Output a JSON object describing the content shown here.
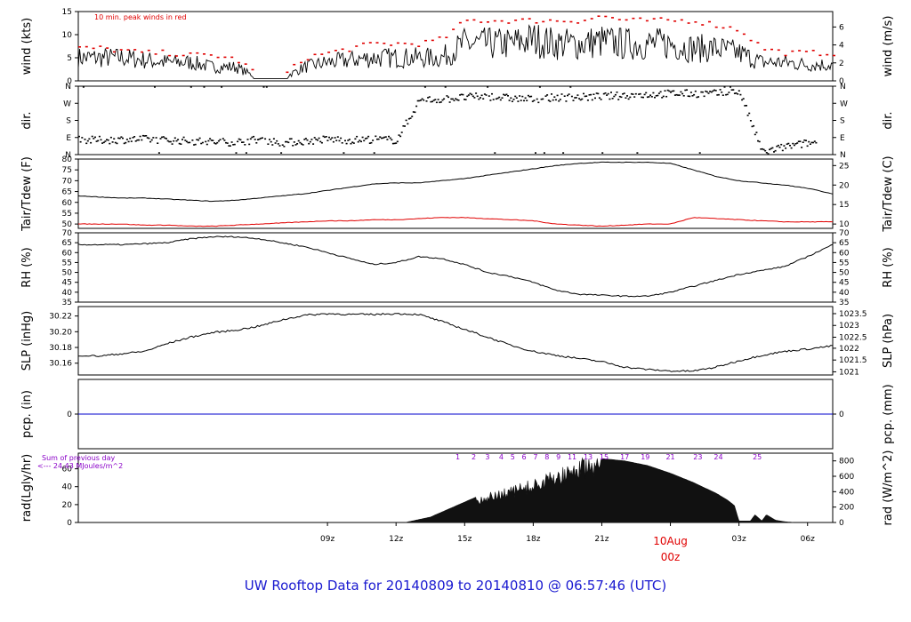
{
  "footer_title": "UW Rooftop Data for 20140809  to  20140810 @ 06:57:46  (UTC)",
  "colors": {
    "line": "#000000",
    "dew_line": "#e00000",
    "peak_dots": "#e00000",
    "precip_line": "#0000cc",
    "radiation_fill": "#111111",
    "rad_annotation": "#8a00c8",
    "date_marker": "#e00000",
    "footer": "#1a1ad0"
  },
  "chart_data": [
    {
      "id": "wind",
      "type": "line",
      "ylabel_left": "wind (kts)",
      "ylabel_right": "wind (m/s)",
      "annotation": "10 min. peak winds in red",
      "ylim": [
        0,
        15
      ],
      "yticks_left": [
        "0",
        "5",
        "10",
        "15"
      ],
      "yticks_right": [
        "0",
        "2",
        "4",
        "6"
      ],
      "yticks_right_values_kts": [
        0,
        3.89,
        7.78,
        11.66
      ],
      "x": [
        -1.9,
        -1,
        0,
        1,
        2,
        3,
        4,
        5,
        6,
        7,
        8,
        9,
        10,
        11,
        12,
        13,
        14,
        15,
        16,
        17,
        18,
        19,
        20,
        21,
        22,
        23,
        24,
        25,
        26,
        27,
        28,
        29,
        30,
        31.1
      ],
      "series": [
        {
          "values": [
            5,
            5,
            5,
            4.5,
            4,
            4,
            3,
            3,
            0.5,
            0.5,
            3,
            4,
            4.5,
            5,
            5,
            5,
            5,
            8,
            8,
            8,
            9,
            8,
            8,
            8.5,
            8,
            8,
            8,
            7,
            7,
            6,
            4,
            4,
            3.5,
            3.5
          ]
        },
        {
          "values": [
            7,
            7,
            6.5,
            6,
            6,
            5.5,
            5.5,
            4.5,
            1,
            1,
            5,
            6,
            7,
            8,
            8,
            8,
            9,
            13,
            13,
            13,
            13,
            13,
            13,
            14,
            13,
            13,
            13,
            13,
            12,
            11,
            7,
            6,
            6,
            6
          ]
        }
      ]
    },
    {
      "id": "direction",
      "type": "scatter",
      "ylabel_left": "dir.",
      "ylabel_right": "dir.",
      "yticks": [
        "N",
        "E",
        "S",
        "W",
        "N"
      ],
      "ylim": [
        0,
        360
      ],
      "x": [
        -1.9,
        -1,
        0,
        1,
        2,
        3,
        4,
        5,
        6,
        7,
        8,
        9,
        10,
        11,
        12,
        13,
        14,
        15,
        16,
        17,
        18,
        19,
        20,
        21,
        22,
        23,
        24,
        25,
        26,
        27,
        28,
        29,
        30,
        31.1
      ],
      "series": [
        {
          "values": [
            75,
            75,
            78,
            80,
            75,
            70,
            65,
            65,
            80,
            60,
            70,
            80,
            75,
            80,
            75,
            285,
            290,
            300,
            305,
            295,
            290,
            300,
            300,
            305,
            310,
            315,
            320,
            320,
            320,
            330,
            10,
            40,
            60,
            70
          ]
        }
      ]
    },
    {
      "id": "temperature",
      "type": "line",
      "ylabel_left": "Tair/Tdew (F)",
      "ylabel_right": "Tair/Tdew (C)",
      "ylim": [
        48,
        80
      ],
      "yticks_left": [
        "50",
        "55",
        "60",
        "65",
        "70",
        "75",
        "80"
      ],
      "yticks_right": [
        "10",
        "15",
        "20",
        "25"
      ],
      "yticks_right_values_f": [
        50,
        59,
        68,
        77
      ],
      "x": [
        -1.9,
        -1,
        0,
        1,
        2,
        3,
        4,
        5,
        6,
        7,
        8,
        9,
        10,
        11,
        12,
        13,
        14,
        15,
        16,
        17,
        18,
        19,
        20,
        21,
        22,
        23,
        24,
        25,
        26,
        27,
        28,
        29,
        30,
        31.1
      ],
      "series": [
        {
          "name": "Tair",
          "values": [
            63,
            62.5,
            62,
            62,
            61.5,
            61,
            60.5,
            61,
            62,
            63,
            64,
            65.5,
            67,
            68.5,
            69,
            69,
            70,
            71,
            72.5,
            74,
            75.5,
            77,
            78,
            78.5,
            78.5,
            78.5,
            78,
            75,
            72,
            70,
            69,
            68,
            66.5,
            64
          ]
        },
        {
          "name": "Tdew",
          "values": [
            50,
            50,
            50,
            49.5,
            49.5,
            49,
            49,
            49.5,
            50,
            50.5,
            51,
            51.5,
            51.5,
            52,
            52,
            52.5,
            53,
            53,
            52.5,
            52,
            51.5,
            50,
            49.5,
            49,
            49.5,
            50,
            50,
            53,
            52.5,
            52,
            51.5,
            51,
            51,
            51
          ]
        }
      ]
    },
    {
      "id": "humidity",
      "type": "line",
      "ylabel_left": "RH (%)",
      "ylabel_right": "RH (%)",
      "ylim": [
        35,
        70
      ],
      "yticks": [
        "35",
        "40",
        "45",
        "50",
        "55",
        "60",
        "65",
        "70"
      ],
      "x": [
        -1.9,
        -1,
        0,
        1,
        2,
        3,
        4,
        5,
        6,
        7,
        8,
        9,
        10,
        11,
        12,
        13,
        14,
        15,
        16,
        17,
        18,
        19,
        20,
        21,
        22,
        23,
        24,
        25,
        26,
        27,
        28,
        29,
        30,
        31.1
      ],
      "series": [
        {
          "values": [
            64,
            64,
            64,
            64.5,
            65,
            67,
            68,
            68,
            67,
            65,
            63,
            60,
            57,
            54,
            55,
            58,
            57,
            54,
            50,
            48,
            45,
            41,
            39,
            38.5,
            38,
            38,
            40,
            43,
            46,
            49,
            51,
            53,
            58,
            64
          ]
        }
      ]
    },
    {
      "id": "pressure",
      "type": "line",
      "ylabel_left": "SLP (inHg)",
      "ylabel_right": "SLP (hPa)",
      "ylim": [
        30.145,
        30.232
      ],
      "yticks_left": [
        "30.16",
        "30.18",
        "30.20",
        "30.22"
      ],
      "yticks_right": [
        "1021",
        "1021.5",
        "1022",
        "1022.5",
        "1023",
        "1023.5"
      ],
      "yticks_right_values_inhg": [
        30.149,
        30.164,
        30.179,
        30.193,
        30.208,
        30.223
      ],
      "x": [
        -1.9,
        -1,
        0,
        1,
        2,
        3,
        4,
        5,
        6,
        7,
        8,
        9,
        10,
        11,
        12,
        13,
        14,
        15,
        16,
        17,
        18,
        19,
        20,
        21,
        22,
        23,
        24,
        25,
        26,
        27,
        28,
        29,
        30,
        31.1
      ],
      "series": [
        {
          "values": [
            30.17,
            30.169,
            30.172,
            30.175,
            30.185,
            30.193,
            30.199,
            30.202,
            30.207,
            30.215,
            30.221,
            30.223,
            30.222,
            30.222,
            30.223,
            30.222,
            30.213,
            30.203,
            30.193,
            30.183,
            30.175,
            30.17,
            30.166,
            30.162,
            30.155,
            30.152,
            30.15,
            30.15,
            30.155,
            30.163,
            30.17,
            30.175,
            30.178,
            30.182
          ]
        }
      ]
    },
    {
      "id": "precipitation",
      "type": "line",
      "ylabel_left": "pcp. (in)",
      "ylabel_right": "pcp. (mm)",
      "ylim": [
        -1,
        1
      ],
      "yticks_left": [
        "0"
      ],
      "yticks_right": [
        "0"
      ],
      "x": [
        -1.9,
        31.1
      ],
      "series": [
        {
          "values": [
            0,
            0
          ]
        }
      ]
    },
    {
      "id": "radiation",
      "type": "area",
      "ylabel_left": "rad(Lgly/hr)",
      "ylabel_right": "rad (W/m^2)",
      "annotation_line1": "Sum of previous day",
      "annotation_line2": "<--- 24.43 MJoules/m^2",
      "ylim": [
        0,
        900
      ],
      "yticks_left": [
        "0",
        "20",
        "40",
        "60"
      ],
      "yticks_left_values_wm2": [
        0,
        232,
        465,
        697
      ],
      "yticks_right": [
        "0",
        "200",
        "400",
        "600",
        "800"
      ],
      "uv_labels": [
        "1",
        "2",
        "3",
        "4",
        "5",
        "6",
        "7",
        "8",
        "9",
        "11",
        "13",
        "15",
        "17",
        "19",
        "21",
        "23",
        "24",
        "25"
      ],
      "uv_positions": [
        14.7,
        15.4,
        16.0,
        16.6,
        17.1,
        17.6,
        18.1,
        18.6,
        19.1,
        19.7,
        20.4,
        21.1,
        22.0,
        22.9,
        24.0,
        25.2,
        26.1,
        27.8
      ],
      "x": [
        12.4,
        13.5,
        14.5,
        15.5,
        16.0,
        16.5,
        17.0,
        17.5,
        18.0,
        18.5,
        19.0,
        19.5,
        20.0,
        21.0,
        22.0,
        23.0,
        24.0,
        25.0,
        26.0,
        26.5,
        26.8,
        27.0,
        27.5,
        27.7,
        28.0,
        28.2,
        28.6,
        29.0,
        29.4
      ],
      "series": [
        {
          "values": [
            0,
            70,
            200,
            330,
            390,
            420,
            470,
            520,
            570,
            620,
            700,
            760,
            840,
            830,
            800,
            740,
            640,
            520,
            380,
            290,
            220,
            20,
            20,
            100,
            20,
            100,
            30,
            10,
            0
          ]
        }
      ]
    },
    {
      "id": "time_axis",
      "type": "axis",
      "x_ticks": [
        9,
        12,
        15,
        18,
        21,
        24,
        27,
        30
      ],
      "x_labels": [
        "09z",
        "12z",
        "15z",
        "18z",
        "21z",
        "00z",
        "03z",
        "06z"
      ],
      "date_label": "10Aug",
      "xlim": [
        -1.9,
        31.1
      ]
    }
  ]
}
